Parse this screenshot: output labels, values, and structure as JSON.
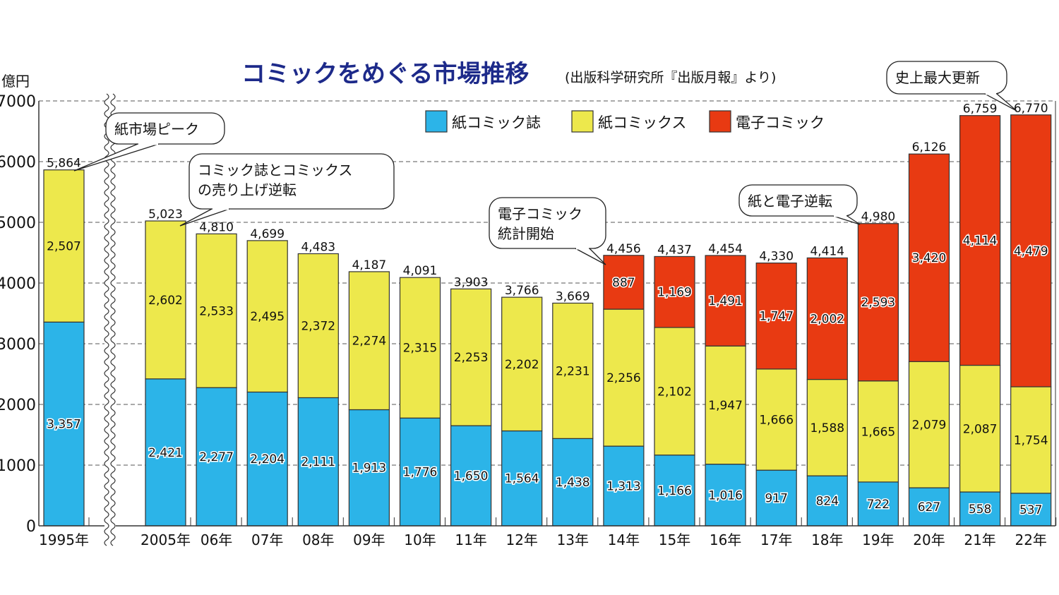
{
  "chart_data": {
    "type": "bar",
    "stacked": true,
    "title": "コミックをめぐる市場推移",
    "subtitle": "(出版科学研究所『出版月報』より)",
    "ylabel": "億円",
    "xlabel": "",
    "ylim": [
      0,
      7000
    ],
    "yticks": [
      "0",
      "1000",
      "2000",
      "3000",
      "4000",
      "5000",
      "6000",
      "7000"
    ],
    "grid": true,
    "axis_break_after": "1995年",
    "legend_position": "top-right",
    "categories": [
      "1995年",
      "2005年",
      "06年",
      "07年",
      "08年",
      "09年",
      "10年",
      "11年",
      "12年",
      "13年",
      "14年",
      "15年",
      "16年",
      "17年",
      "18年",
      "19年",
      "20年",
      "21年",
      "22年"
    ],
    "series": [
      {
        "name": "紙コミック誌",
        "color": "#2cb4e8",
        "values": [
          3357,
          2421,
          2277,
          2204,
          2111,
          1913,
          1776,
          1650,
          1564,
          1438,
          1313,
          1166,
          1016,
          917,
          824,
          722,
          627,
          558,
          537
        ],
        "labels": [
          "3,357",
          "2,421",
          "2,277",
          "2,204",
          "2,111",
          "1,913",
          "1,776",
          "1,650",
          "1,564",
          "1,438",
          "1,313",
          "1,166",
          "1,016",
          "917",
          "824",
          "722",
          "627",
          "558",
          "537"
        ]
      },
      {
        "name": "紙コミックス",
        "color": "#ede84c",
        "values": [
          2507,
          2602,
          2533,
          2495,
          2372,
          2274,
          2315,
          2253,
          2202,
          2231,
          2256,
          2102,
          1947,
          1666,
          1588,
          1665,
          2079,
          2087,
          1754
        ],
        "labels": [
          "2,507",
          "2,602",
          "2,533",
          "2,495",
          "2,372",
          "2,274",
          "2,315",
          "2,253",
          "2,202",
          "2,231",
          "2,256",
          "2,102",
          "1,947",
          "1,666",
          "1,588",
          "1,665",
          "2,079",
          "2,087",
          "1,754"
        ]
      },
      {
        "name": "電子コミック",
        "color": "#e83a12",
        "values": [
          null,
          null,
          null,
          null,
          null,
          null,
          null,
          null,
          null,
          null,
          887,
          1169,
          1491,
          1747,
          2002,
          2593,
          3420,
          4114,
          4479
        ],
        "labels": [
          null,
          null,
          null,
          null,
          null,
          null,
          null,
          null,
          null,
          null,
          "887",
          "1,169",
          "1,491",
          "1,747",
          "2,002",
          "2,593",
          "3,420",
          "4,114",
          "4,479"
        ]
      }
    ],
    "totals": [
      5864,
      5023,
      4810,
      4699,
      4483,
      4187,
      4091,
      3903,
      3766,
      3669,
      4456,
      4437,
      4454,
      4330,
      4414,
      4980,
      6126,
      6759,
      6770
    ],
    "total_labels": [
      "5,864",
      "5,023",
      "4,810",
      "4,699",
      "4,483",
      "4,187",
      "4,091",
      "3,903",
      "3,766",
      "3,669",
      "4,456",
      "4,437",
      "4,454",
      "4,330",
      "4,414",
      "4,980",
      "6,126",
      "6,759",
      "6,770"
    ],
    "annotations": [
      {
        "lines": [
          "紙市場ピーク"
        ],
        "target": "1995年"
      },
      {
        "lines": [
          "コミック誌とコミックス",
          "の売り上げ逆転"
        ],
        "target": "2005年"
      },
      {
        "lines": [
          "電子コミック",
          "統計開始"
        ],
        "target": "14年"
      },
      {
        "lines": [
          "紙と電子逆転"
        ],
        "target": "19年"
      },
      {
        "lines": [
          "史上最大更新"
        ],
        "target": "22年"
      }
    ]
  }
}
